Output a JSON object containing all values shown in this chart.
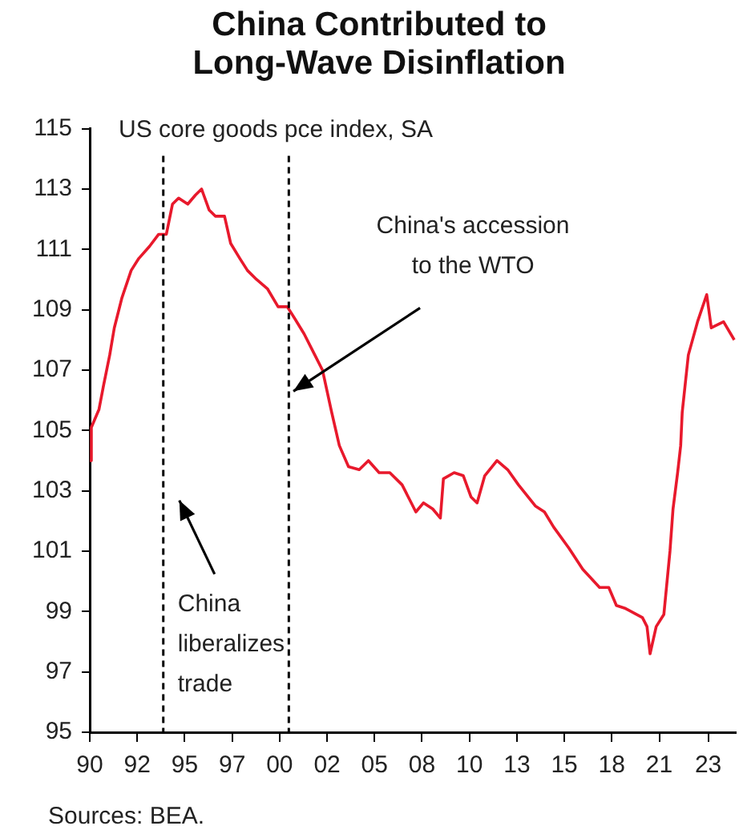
{
  "chart_data": {
    "type": "line",
    "title": "China Contributed to\nLong-Wave Disinflation",
    "subtitle": "US core goods pce index, SA",
    "x": [
      "1990-01",
      "1990-02",
      "1990-07",
      "1990-10",
      "1991-02",
      "1991-05",
      "1991-10",
      "1992-04",
      "1992-09",
      "1993-04",
      "1993-10",
      "1994-03",
      "1994-07",
      "1994-11",
      "1995-05",
      "1995-10",
      "1996-02",
      "1996-07",
      "1996-11",
      "1997-05",
      "1997-09",
      "1998-03",
      "1998-08",
      "1999-02",
      "1999-09",
      "2000-04",
      "2000-10",
      "2001-03",
      "2001-09",
      "2002-04",
      "2002-09",
      "2003-03",
      "2003-08",
      "2004-02",
      "2004-09",
      "2005-03",
      "2005-10",
      "2006-05",
      "2007-01",
      "2007-10",
      "2008-03",
      "2008-09",
      "2009-02",
      "2009-04",
      "2009-11",
      "2010-05",
      "2010-10",
      "2011-02",
      "2011-07",
      "2012-03",
      "2012-10",
      "2013-05",
      "2014-04",
      "2014-10",
      "2015-04",
      "2016-02",
      "2016-11",
      "2017-10",
      "2018-04",
      "2018-09",
      "2019-03",
      "2020-02",
      "2020-05",
      "2020-07",
      "2020-11",
      "2021-04",
      "2021-08",
      "2021-10",
      "2022-01",
      "2022-03",
      "2022-04",
      "2022-08",
      "2023-02",
      "2023-08",
      "2023-11",
      "2024-07",
      "2025-02"
    ],
    "series": [
      {
        "color": "#e8192c",
        "values": [
          104.0,
          105.1,
          105.7,
          106.5,
          107.5,
          108.4,
          109.4,
          110.3,
          110.7,
          111.1,
          111.5,
          111.5,
          112.5,
          112.7,
          112.5,
          112.8,
          113.0,
          112.3,
          112.1,
          112.1,
          111.2,
          110.7,
          110.3,
          110.0,
          109.7,
          109.1,
          109.1,
          108.7,
          108.2,
          107.5,
          107.0,
          105.6,
          104.5,
          103.8,
          103.7,
          104.0,
          103.6,
          103.6,
          103.2,
          102.3,
          102.6,
          102.4,
          102.1,
          103.4,
          103.6,
          103.5,
          102.8,
          102.6,
          103.5,
          104.0,
          103.7,
          103.2,
          102.5,
          102.3,
          101.8,
          101.1,
          100.4,
          99.8,
          99.8,
          99.2,
          99.1,
          98.8,
          98.5,
          97.6,
          98.5,
          98.9,
          101.0,
          102.4,
          103.6,
          104.5,
          105.6,
          107.5,
          108.6,
          109.5,
          108.4,
          108.6,
          108.0
        ]
      }
    ],
    "xlim": [
      "1990-01",
      "2025-03"
    ],
    "xticks": [
      {
        "value": "1990-01",
        "label": "90"
      },
      {
        "value": "1992-08",
        "label": "92"
      },
      {
        "value": "1995-03",
        "label": "95"
      },
      {
        "value": "1997-10",
        "label": "97"
      },
      {
        "value": "2000-05",
        "label": "00"
      },
      {
        "value": "2002-12",
        "label": "02"
      },
      {
        "value": "2005-07",
        "label": "05"
      },
      {
        "value": "2008-02",
        "label": "08"
      },
      {
        "value": "2010-09",
        "label": "10"
      },
      {
        "value": "2013-04",
        "label": "13"
      },
      {
        "value": "2015-11",
        "label": "15"
      },
      {
        "value": "2018-06",
        "label": "18"
      },
      {
        "value": "2021-01",
        "label": "21"
      },
      {
        "value": "2023-09",
        "label": "23"
      }
    ],
    "ylim": [
      95,
      115
    ],
    "yticks": [
      95,
      97,
      99,
      101,
      103,
      105,
      107,
      109,
      111,
      113,
      115
    ],
    "ref_lines": [
      {
        "axis": "x",
        "value": "1994-01",
        "color": "#000000",
        "line_style": "dashed"
      },
      {
        "axis": "x",
        "value": "2000-11",
        "color": "#000000",
        "line_style": "dashed"
      }
    ],
    "annotations": [
      {
        "text": "China's accession\nto the WTO",
        "x": "2001-02",
        "y": 106.3
      },
      "China\nliberalizes\ntrade",
      "Sources: BEA."
    ],
    "grid": false,
    "legend": false,
    "marker": "none",
    "line_style": "solid"
  }
}
